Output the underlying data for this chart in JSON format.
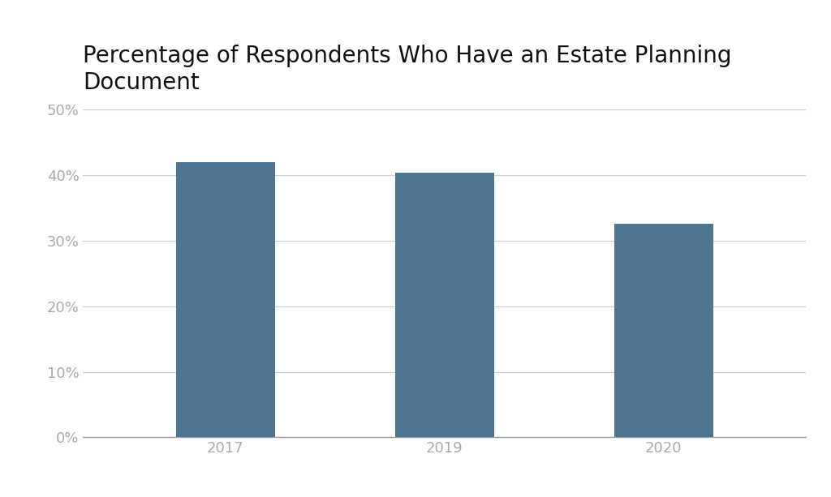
{
  "title": "Percentage of Respondents Who Have an Estate Planning\nDocument",
  "categories": [
    "2017",
    "2019",
    "2020"
  ],
  "values": [
    0.42,
    0.403,
    0.325
  ],
  "bar_color": "#4d7491",
  "background_color": "#ffffff",
  "ylim": [
    0,
    0.5
  ],
  "yticks": [
    0.0,
    0.1,
    0.2,
    0.3,
    0.4,
    0.5
  ],
  "title_fontsize": 20,
  "tick_fontsize": 13,
  "bar_width": 0.45,
  "grid_color": "#cccccc",
  "tick_color": "#aaaaaa",
  "title_color": "#111111",
  "title_fontweight": "normal"
}
